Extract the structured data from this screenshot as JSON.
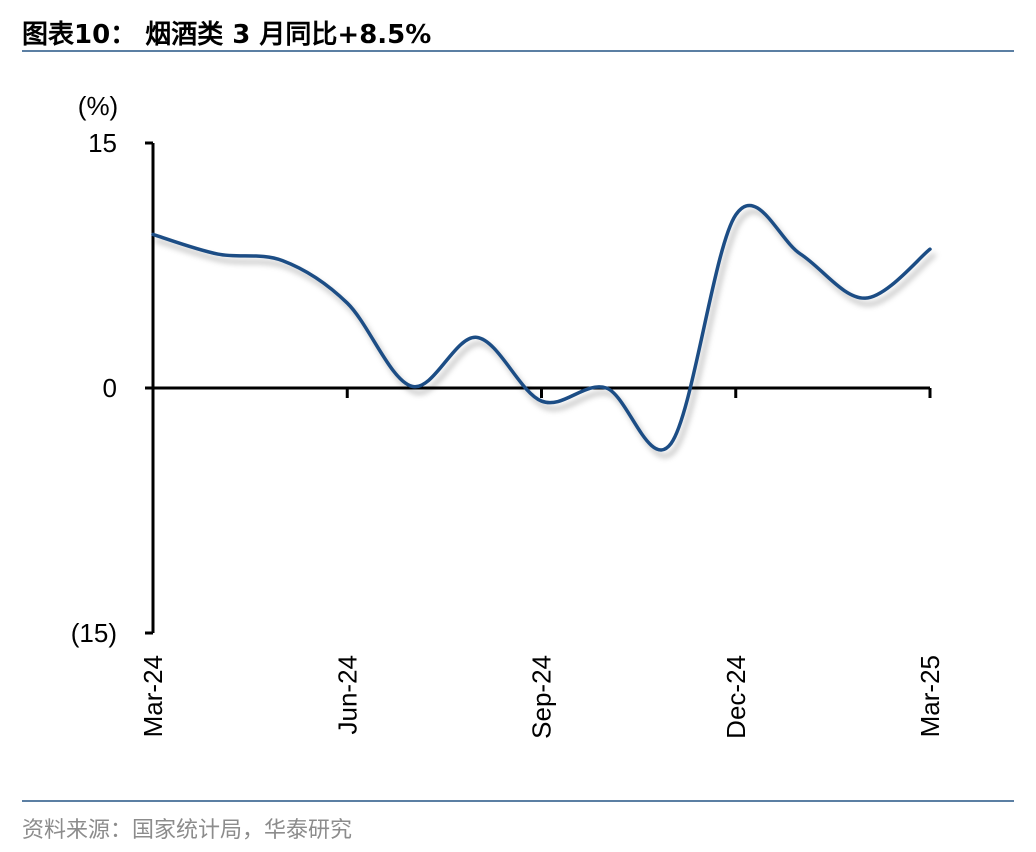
{
  "title": "图表10：  烟酒类 3 月同比+8.5%",
  "source": "资料来源：国家统计局，华泰研究",
  "colors": {
    "line": "#1f4e85",
    "axis": "#000000",
    "rule": "#5b7fa3",
    "source_text": "#8c8c8c"
  },
  "chart_data": {
    "type": "line",
    "title": "烟酒类 3 月同比+8.5%",
    "unit_label": "(%)",
    "ylim": [
      -15,
      15
    ],
    "yticks": [
      15,
      0,
      -15
    ],
    "ytick_labels": [
      "15",
      "0",
      "(15)"
    ],
    "xtick_labels": [
      "Mar-24",
      "Jun-24",
      "Sep-24",
      "Dec-24",
      "Mar-25"
    ],
    "xtick_index": [
      0,
      3,
      6,
      9,
      12
    ],
    "grid": false,
    "legend": "none",
    "series": [
      {
        "x": [
          "Mar-24",
          "Apr-24",
          "May-24",
          "Jun-24",
          "Jul-24",
          "Aug-24",
          "Sep-24",
          "Oct-24",
          "Nov-24",
          "Dec-24",
          "Jan-25",
          "Feb-25",
          "Mar-25"
        ],
        "values": [
          9.4,
          8.2,
          7.8,
          5.2,
          0.1,
          3.1,
          -0.8,
          0.0,
          -3.4,
          10.6,
          8.2,
          5.5,
          8.5
        ]
      }
    ]
  }
}
